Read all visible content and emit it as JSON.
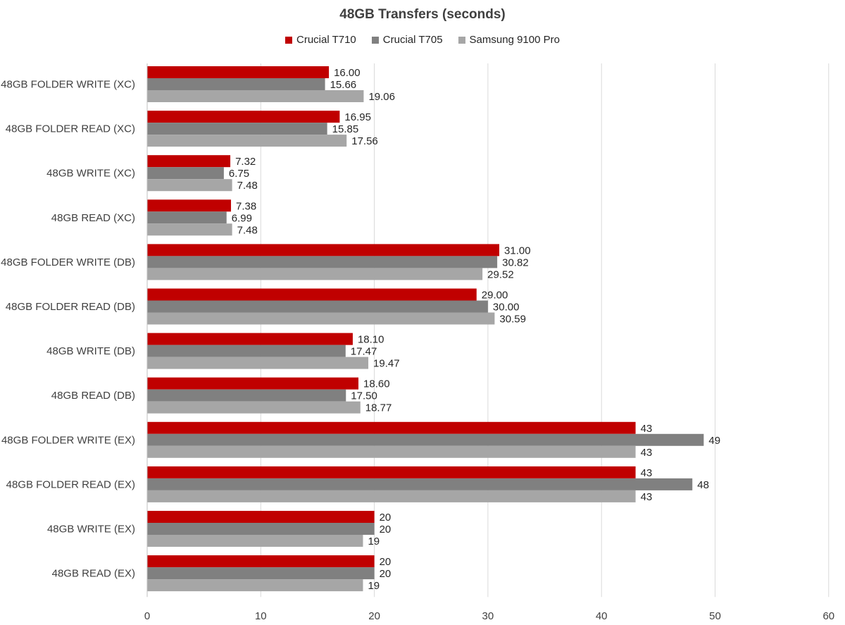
{
  "chart_data": {
    "type": "bar",
    "orientation": "horizontal",
    "title": "48GB Transfers (seconds)",
    "categories": [
      "48GB FOLDER WRITE (XC)",
      "48GB FOLDER READ (XC)",
      "48GB WRITE (XC)",
      "48GB READ (XC)",
      "48GB FOLDER WRITE (DB)",
      "48GB FOLDER READ (DB)",
      "48GB WRITE (DB)",
      "48GB READ (DB)",
      "48GB FOLDER WRITE (EX)",
      "48GB FOLDER READ (EX)",
      "48GB WRITE (EX)",
      "48GB READ (EX)"
    ],
    "series": [
      {
        "name": "Crucial T710",
        "color": "#c00000",
        "values": [
          16.0,
          16.95,
          7.32,
          7.38,
          31.0,
          29.0,
          18.1,
          18.6,
          43,
          43,
          20,
          20
        ],
        "labels": [
          "16.00",
          "16.95",
          "7.32",
          "7.38",
          "31.00",
          "29.00",
          "18.10",
          "18.60",
          "43",
          "43",
          "20",
          "20"
        ]
      },
      {
        "name": "Crucial T705",
        "color": "#808080",
        "values": [
          15.66,
          15.85,
          6.75,
          6.99,
          30.82,
          30.0,
          17.47,
          17.5,
          49,
          48,
          20,
          20
        ],
        "labels": [
          "15.66",
          "15.85",
          "6.75",
          "6.99",
          "30.82",
          "30.00",
          "17.47",
          "17.50",
          "49",
          "48",
          "20",
          "20"
        ]
      },
      {
        "name": "Samsung 9100 Pro",
        "color": "#a6a6a6",
        "values": [
          19.06,
          17.56,
          7.48,
          7.48,
          29.52,
          30.59,
          19.47,
          18.77,
          43,
          43,
          19,
          19
        ],
        "labels": [
          "19.06",
          "17.56",
          "7.48",
          "7.48",
          "29.52",
          "30.59",
          "19.47",
          "18.77",
          "43",
          "43",
          "19",
          "19"
        ]
      }
    ],
    "xlim": [
      0,
      60
    ],
    "xticks": [
      "0",
      "10",
      "20",
      "30",
      "40",
      "50",
      "60"
    ],
    "grid": true,
    "legend_position": "top"
  }
}
